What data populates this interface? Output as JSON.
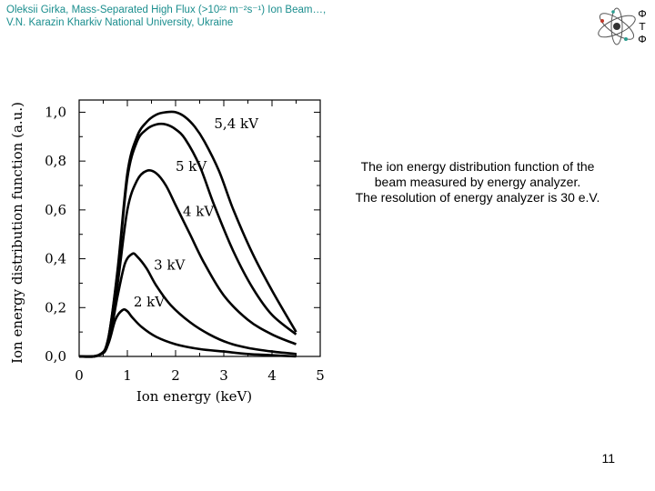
{
  "header": {
    "line1": "Oleksii Girka, Mass-Separated High Flux (>10²² m⁻²s⁻¹) Ion Beam…,",
    "line2": "V.N. Karazin Kharkiv National University, Ukraine"
  },
  "logo": {
    "letters": [
      "Ф",
      "T",
      "Ф"
    ],
    "color": "#111111",
    "accent": "#2a9d8f"
  },
  "caption": {
    "lines": [
      "The ion energy distribution function of the",
      "beam measured by energy analyzer.",
      "The resolution of energy analyzer is 30 e.V."
    ]
  },
  "page_number": "11",
  "chart_data": {
    "type": "line",
    "xlabel": "Ion energy (keV)",
    "ylabel": "Ion energy distribution function (a.u.)",
    "xlim": [
      0,
      5
    ],
    "ylim": [
      0,
      1.05
    ],
    "x_ticks": [
      "0",
      "1",
      "2",
      "3",
      "4",
      "5"
    ],
    "y_ticks": [
      "0,0",
      "0,2",
      "0,4",
      "0,6",
      "0,8",
      "1,0"
    ],
    "grid": false,
    "line_color": "#000000",
    "series": [
      {
        "name": "2 kV",
        "x": [
          0,
          0.4,
          0.6,
          0.75,
          0.9,
          1.0,
          1.1,
          1.3,
          1.6,
          2.0,
          2.5,
          3.0,
          3.5,
          4.0,
          4.5
        ],
        "y": [
          0,
          0.005,
          0.05,
          0.15,
          0.19,
          0.185,
          0.16,
          0.12,
          0.08,
          0.05,
          0.03,
          0.02,
          0.01,
          0.005,
          0.0
        ],
        "label_x": 1.13,
        "label_y": 0.205
      },
      {
        "name": "3 kV",
        "x": [
          0,
          0.4,
          0.6,
          0.8,
          0.95,
          1.1,
          1.2,
          1.4,
          1.6,
          1.9,
          2.3,
          2.7,
          3.1,
          3.5,
          4.0,
          4.5
        ],
        "y": [
          0,
          0.005,
          0.05,
          0.25,
          0.38,
          0.42,
          0.41,
          0.36,
          0.29,
          0.21,
          0.14,
          0.09,
          0.055,
          0.035,
          0.02,
          0.01
        ],
        "label_x": 1.55,
        "label_y": 0.355
      },
      {
        "name": "4 kV",
        "x": [
          0,
          0.4,
          0.6,
          0.8,
          1.0,
          1.2,
          1.4,
          1.6,
          1.8,
          2.0,
          2.3,
          2.6,
          3.0,
          3.5,
          4.0,
          4.5
        ],
        "y": [
          0,
          0.005,
          0.06,
          0.3,
          0.6,
          0.72,
          0.76,
          0.75,
          0.7,
          0.62,
          0.5,
          0.38,
          0.25,
          0.15,
          0.09,
          0.05
        ],
        "label_x": 2.15,
        "label_y": 0.575
      },
      {
        "name": "5 kV",
        "x": [
          0,
          0.4,
          0.6,
          0.8,
          1.0,
          1.2,
          1.4,
          1.6,
          1.8,
          2.0,
          2.2,
          2.5,
          2.8,
          3.2,
          3.6,
          4.0,
          4.5
        ],
        "y": [
          0,
          0.005,
          0.07,
          0.35,
          0.73,
          0.88,
          0.93,
          0.95,
          0.95,
          0.93,
          0.89,
          0.78,
          0.62,
          0.43,
          0.28,
          0.17,
          0.09
        ],
        "label_x": 2.0,
        "label_y": 0.76
      },
      {
        "name": "5,4 kV",
        "x": [
          0,
          0.4,
          0.6,
          0.8,
          1.0,
          1.2,
          1.4,
          1.6,
          1.8,
          2.0,
          2.2,
          2.4,
          2.6,
          2.9,
          3.2,
          3.6,
          4.0,
          4.5
        ],
        "y": [
          0,
          0.005,
          0.07,
          0.36,
          0.75,
          0.9,
          0.96,
          0.99,
          1.0,
          1.0,
          0.98,
          0.94,
          0.88,
          0.76,
          0.6,
          0.42,
          0.27,
          0.1
        ],
        "label_x": 2.8,
        "label_y": 0.935
      }
    ]
  }
}
